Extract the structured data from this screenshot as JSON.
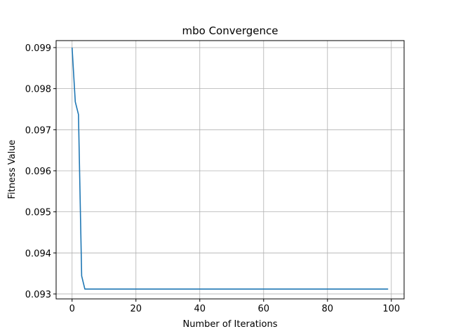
{
  "chart_data": {
    "type": "line",
    "title": "mbo Convergence",
    "xlabel": "Number of Iterations",
    "ylabel": "Fitness Value",
    "xlim": [
      -5,
      104
    ],
    "ylim": [
      0.09288,
      0.09917
    ],
    "grid": true,
    "line_color": "#1f77b4",
    "x_ticks": [
      0,
      20,
      40,
      60,
      80,
      100
    ],
    "x_tick_labels": [
      "0",
      "20",
      "40",
      "60",
      "80",
      "100"
    ],
    "y_ticks": [
      0.093,
      0.094,
      0.095,
      0.096,
      0.097,
      0.098,
      0.099
    ],
    "y_tick_labels": [
      "0.093",
      "0.094",
      "0.095",
      "0.096",
      "0.097",
      "0.098",
      "0.099"
    ],
    "series": [
      {
        "x": [
          0,
          1,
          2,
          3,
          4,
          99
        ],
        "y": [
          0.099,
          0.09768,
          0.09737,
          0.09344,
          0.09312,
          0.09312
        ]
      }
    ]
  }
}
